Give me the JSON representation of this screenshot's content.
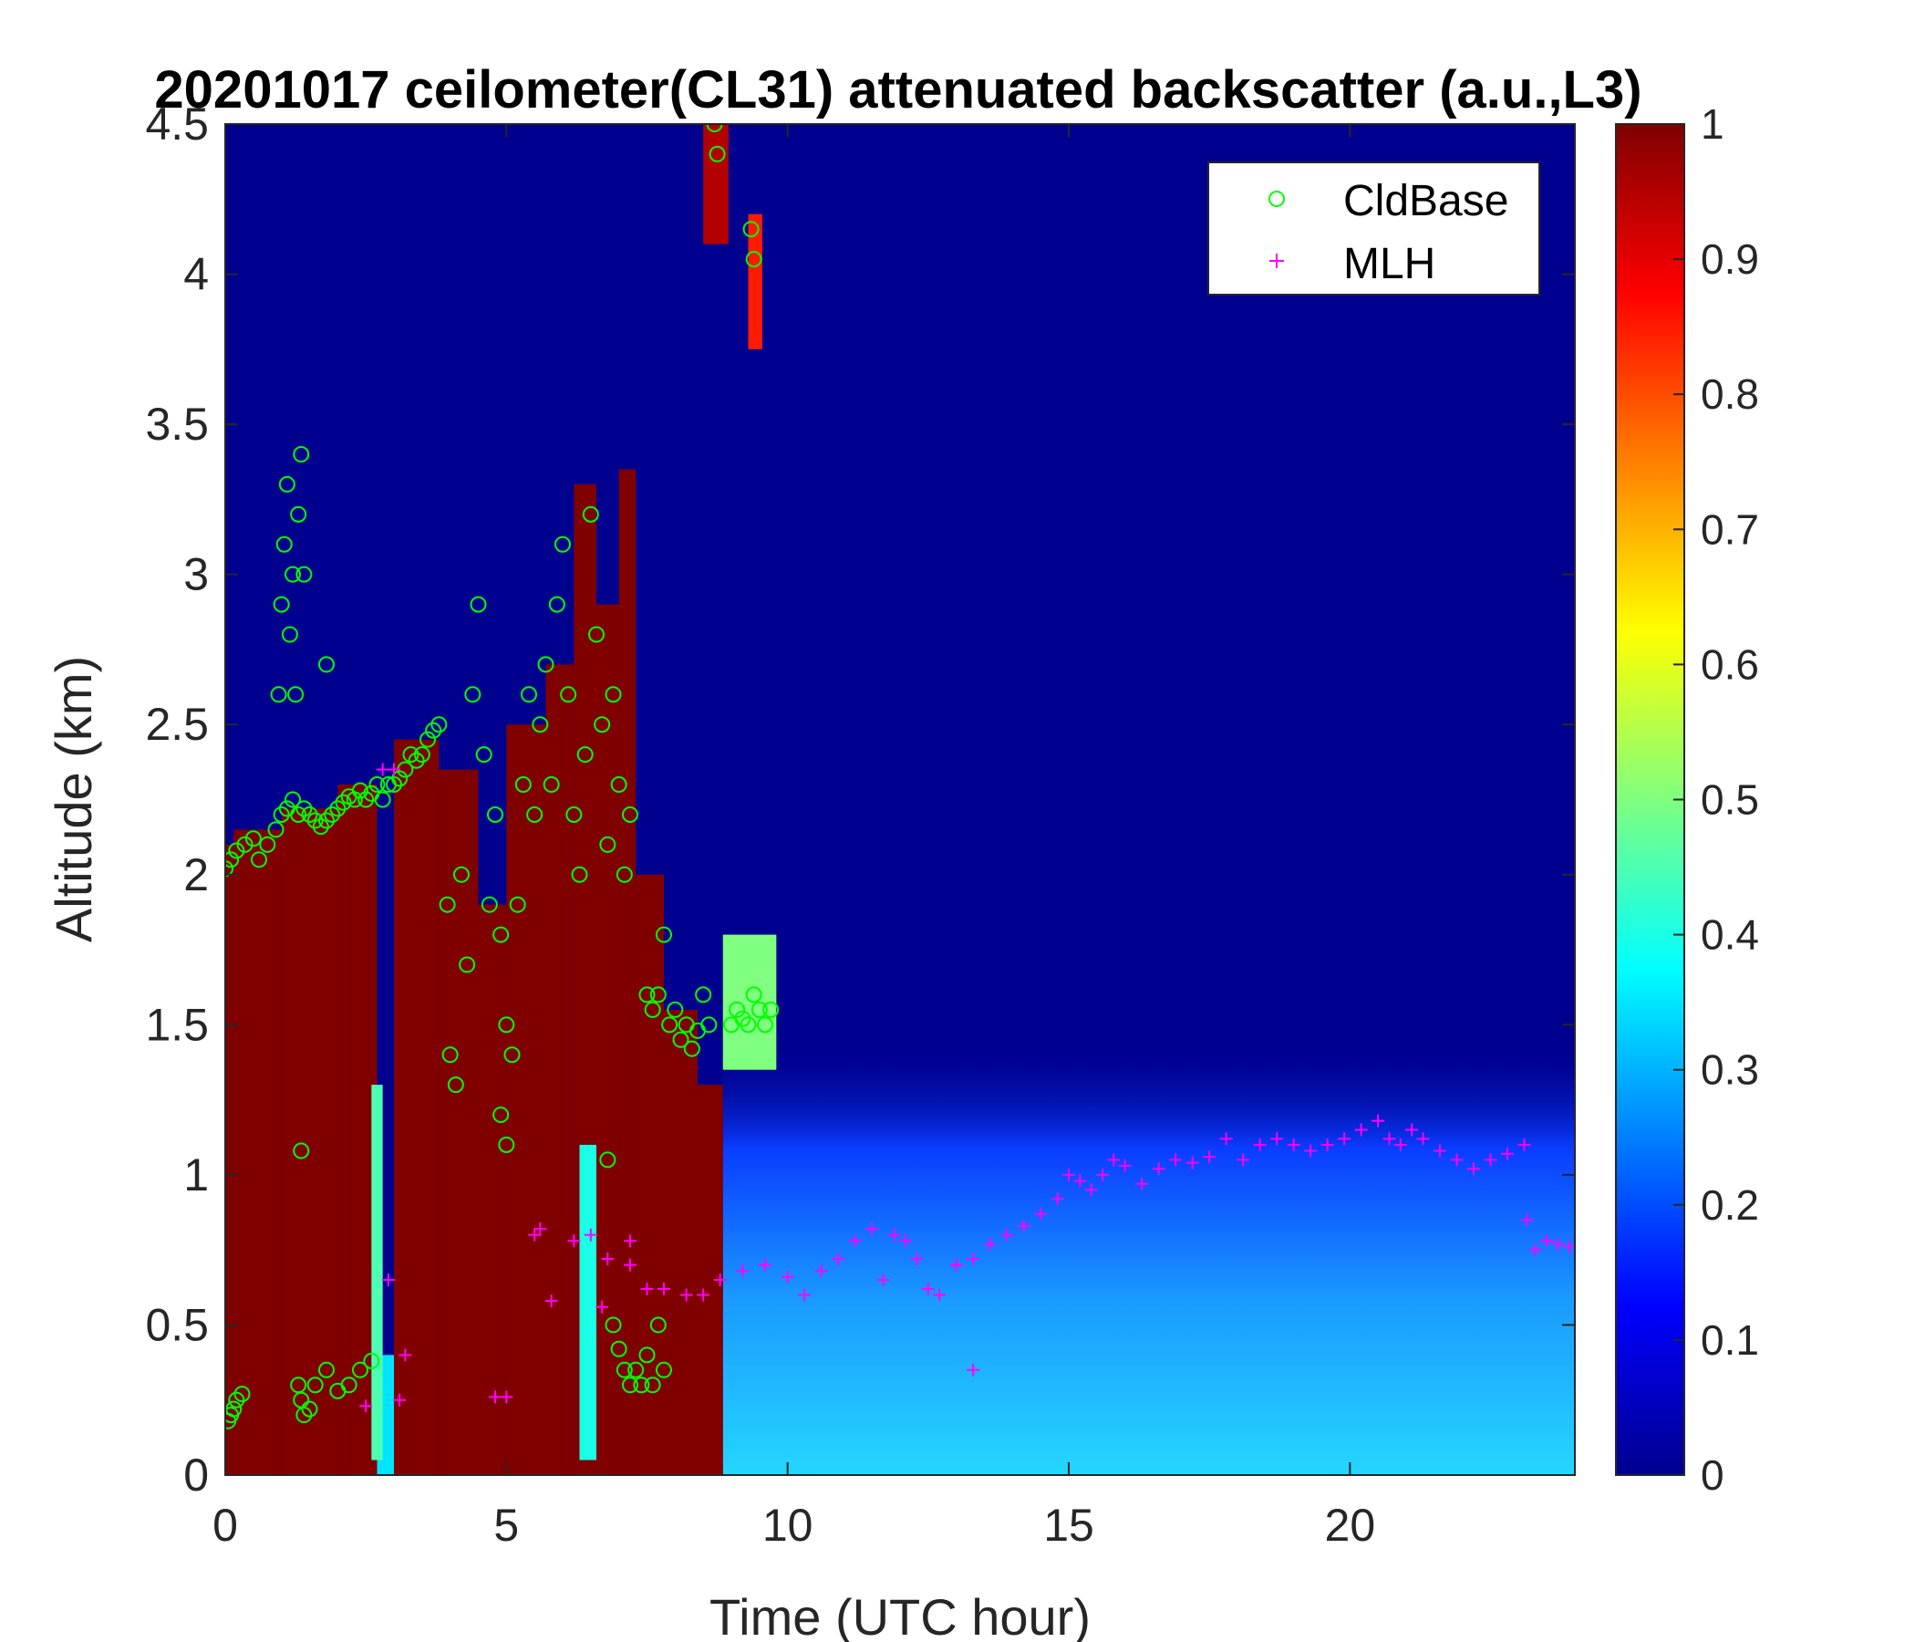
{
  "chart_data": {
    "type": "heatmap",
    "title": "20201017 ceilometer(CL31) attenuated backscatter (a.u.,L3)",
    "xlabel": "Time (UTC hour)",
    "ylabel": "Altitude (km)",
    "xlim": [
      0,
      24
    ],
    "ylim": [
      0,
      4.5
    ],
    "x_ticks": [
      "0",
      "5",
      "10",
      "15",
      "20"
    ],
    "x_tick_values": [
      0,
      5,
      10,
      15,
      20
    ],
    "y_ticks": [
      "0",
      "0.5",
      "1",
      "1.5",
      "2",
      "2.5",
      "3",
      "3.5",
      "4",
      "4.5"
    ],
    "y_tick_values": [
      0,
      0.5,
      1,
      1.5,
      2,
      2.5,
      3,
      3.5,
      4,
      4.5
    ],
    "colorbar": {
      "range": [
        0,
        1
      ],
      "ticks": [
        "0",
        "0.1",
        "0.2",
        "0.3",
        "0.4",
        "0.5",
        "0.6",
        "0.7",
        "0.8",
        "0.9",
        "1"
      ],
      "tick_values": [
        0,
        0.1,
        0.2,
        0.3,
        0.4,
        0.5,
        0.6,
        0.7,
        0.8,
        0.9,
        1.0
      ],
      "colormap": "jet"
    },
    "legend": {
      "placement": "top-right",
      "entries": [
        {
          "name": "CldBase",
          "marker": "o",
          "color": "#00ff00"
        },
        {
          "name": "MLH",
          "marker": "+",
          "color": "#ff00ff"
        }
      ]
    },
    "heatmap_regions": [
      {
        "t0": 0.0,
        "t1": 0.15,
        "z0": 0,
        "z1": 2.1,
        "v": 1.0
      },
      {
        "t0": 0.15,
        "t1": 1.0,
        "z0": 0,
        "z1": 2.15,
        "v": 1.0
      },
      {
        "t0": 1.0,
        "t1": 2.0,
        "z0": 0,
        "z1": 2.22,
        "v": 1.0
      },
      {
        "t0": 2.0,
        "t1": 2.7,
        "z0": 0,
        "z1": 2.3,
        "v": 1.0
      },
      {
        "t0": 2.7,
        "t1": 3.0,
        "z0": 0,
        "z1": 0.4,
        "v": 0.35
      },
      {
        "t0": 3.0,
        "t1": 3.8,
        "z0": 0,
        "z1": 2.45,
        "v": 1.0
      },
      {
        "t0": 3.8,
        "t1": 4.5,
        "z0": 0,
        "z1": 2.35,
        "v": 1.0
      },
      {
        "t0": 4.5,
        "t1": 5.0,
        "z0": 0,
        "z1": 1.9,
        "v": 1.0
      },
      {
        "t0": 5.0,
        "t1": 5.7,
        "z0": 0,
        "z1": 2.5,
        "v": 1.0
      },
      {
        "t0": 5.7,
        "t1": 6.2,
        "z0": 0,
        "z1": 2.7,
        "v": 1.0
      },
      {
        "t0": 6.2,
        "t1": 6.6,
        "z0": 0,
        "z1": 3.3,
        "v": 1.0
      },
      {
        "t0": 6.6,
        "t1": 7.0,
        "z0": 0,
        "z1": 2.9,
        "v": 1.0
      },
      {
        "t0": 7.0,
        "t1": 7.3,
        "z0": 0,
        "z1": 3.35,
        "v": 1.0
      },
      {
        "t0": 7.3,
        "t1": 7.8,
        "z0": 0,
        "z1": 2.0,
        "v": 1.0
      },
      {
        "t0": 7.8,
        "t1": 8.4,
        "z0": 0,
        "z1": 1.55,
        "v": 1.0
      },
      {
        "t0": 8.4,
        "t1": 8.85,
        "z0": 0,
        "z1": 1.3,
        "v": 1.0
      },
      {
        "t0": 8.85,
        "t1": 9.8,
        "z0": 1.35,
        "z1": 1.8,
        "v": 0.5
      },
      {
        "t0": 8.5,
        "t1": 8.95,
        "z0": 4.1,
        "z1": 4.5,
        "v": 0.95
      },
      {
        "t0": 9.3,
        "t1": 9.55,
        "z0": 3.75,
        "z1": 4.2,
        "v": 0.85
      },
      {
        "t0": 2.6,
        "t1": 2.8,
        "z0": 0.05,
        "z1": 1.3,
        "v": 0.45
      },
      {
        "t0": 6.3,
        "t1": 6.6,
        "z0": 0.05,
        "z1": 1.1,
        "v": 0.4
      }
    ],
    "series": [
      {
        "name": "CldBase",
        "x": [
          0.0,
          0.1,
          0.2,
          0.35,
          0.5,
          0.6,
          0.75,
          0.9,
          1.0,
          1.1,
          1.2,
          1.3,
          1.4,
          1.5,
          1.6,
          1.7,
          1.8,
          1.9,
          2.0,
          2.1,
          2.2,
          2.3,
          2.4,
          2.5,
          2.6,
          2.7,
          2.8,
          2.9,
          3.0,
          3.1,
          3.2,
          3.3,
          3.4,
          3.5,
          3.6,
          3.7,
          3.8,
          0.95,
          1.0,
          1.05,
          1.1,
          1.15,
          1.2,
          1.25,
          1.3,
          1.35,
          1.4,
          1.8,
          3.95,
          4.0,
          4.1,
          4.2,
          4.3,
          4.4,
          4.5,
          4.6,
          4.7,
          4.8,
          4.9,
          5.0,
          5.1,
          5.2,
          5.3,
          5.4,
          5.5,
          5.6,
          5.7,
          5.8,
          5.9,
          6.0,
          6.1,
          6.2,
          6.3,
          6.4,
          6.5,
          6.6,
          6.7,
          6.8,
          6.9,
          7.0,
          7.1,
          7.2,
          7.5,
          7.6,
          7.7,
          7.8,
          7.9,
          8.0,
          8.1,
          8.2,
          8.3,
          8.4,
          8.5,
          8.6,
          9.0,
          9.1,
          9.2,
          9.3,
          9.4,
          9.5,
          9.6,
          9.7,
          8.7,
          8.75,
          9.35,
          9.4,
          1.3,
          1.35,
          1.4,
          1.5,
          1.6,
          1.8,
          2.0,
          2.2,
          2.4,
          2.6,
          0.05,
          0.1,
          0.15,
          0.2,
          0.3,
          6.9,
          7.0,
          7.1,
          7.2,
          7.3,
          7.4,
          7.5,
          7.6,
          7.7,
          7.8,
          1.35,
          4.9,
          5.0,
          6.8
        ],
        "y": [
          2.02,
          2.05,
          2.08,
          2.1,
          2.12,
          2.05,
          2.1,
          2.15,
          2.2,
          2.22,
          2.25,
          2.2,
          2.22,
          2.2,
          2.18,
          2.16,
          2.18,
          2.2,
          2.22,
          2.24,
          2.26,
          2.25,
          2.28,
          2.25,
          2.27,
          2.3,
          2.25,
          2.3,
          2.3,
          2.32,
          2.35,
          2.4,
          2.38,
          2.4,
          2.45,
          2.48,
          2.5,
          2.6,
          2.9,
          3.1,
          3.3,
          2.8,
          3.0,
          2.6,
          3.2,
          3.4,
          3.0,
          2.7,
          1.9,
          1.4,
          1.3,
          2.0,
          1.7,
          2.6,
          2.9,
          2.4,
          1.9,
          2.2,
          1.8,
          1.5,
          1.4,
          1.9,
          2.3,
          2.6,
          2.2,
          2.5,
          2.7,
          2.3,
          2.9,
          3.1,
          2.6,
          2.2,
          2.0,
          2.4,
          3.2,
          2.8,
          2.5,
          2.1,
          2.6,
          2.3,
          2.0,
          2.2,
          1.6,
          1.55,
          1.6,
          1.8,
          1.5,
          1.55,
          1.45,
          1.5,
          1.42,
          1.48,
          1.6,
          1.5,
          1.5,
          1.55,
          1.52,
          1.5,
          1.6,
          1.55,
          1.5,
          1.55,
          4.5,
          4.4,
          4.15,
          4.05,
          0.3,
          0.25,
          0.2,
          0.22,
          0.3,
          0.35,
          0.28,
          0.3,
          0.35,
          0.38,
          0.18,
          0.2,
          0.22,
          0.25,
          0.27,
          0.5,
          0.42,
          0.35,
          0.3,
          0.35,
          0.3,
          0.4,
          0.3,
          0.5,
          0.35,
          1.08,
          1.2,
          1.1,
          1.05
        ]
      },
      {
        "name": "MLH",
        "x": [
          2.5,
          2.8,
          3.0,
          3.2,
          5.0,
          5.5,
          5.8,
          6.2,
          6.5,
          6.8,
          7.2,
          7.5,
          7.8,
          8.2,
          8.5,
          8.8,
          9.2,
          9.6,
          10.0,
          10.3,
          10.6,
          10.9,
          11.2,
          11.5,
          11.7,
          11.9,
          12.1,
          12.3,
          12.5,
          12.7,
          13.0,
          13.3,
          13.6,
          13.9,
          14.2,
          14.5,
          14.8,
          15.0,
          15.2,
          15.4,
          15.6,
          15.8,
          16.0,
          16.3,
          16.6,
          16.9,
          17.2,
          17.5,
          17.8,
          18.1,
          18.4,
          18.7,
          19.0,
          19.3,
          19.6,
          19.9,
          20.2,
          20.5,
          20.7,
          20.9,
          21.1,
          21.3,
          21.6,
          21.9,
          22.2,
          22.5,
          22.8,
          23.1,
          23.3,
          23.5,
          23.7,
          23.9,
          2.9,
          3.1,
          4.8,
          5.6,
          6.7,
          7.2,
          13.3,
          23.15
        ],
        "y": [
          0.23,
          2.35,
          2.35,
          0.4,
          0.26,
          0.8,
          0.58,
          0.78,
          0.8,
          0.72,
          0.7,
          0.62,
          0.62,
          0.6,
          0.6,
          0.65,
          0.68,
          0.7,
          0.66,
          0.6,
          0.68,
          0.72,
          0.78,
          0.82,
          0.65,
          0.8,
          0.78,
          0.72,
          0.62,
          0.6,
          0.7,
          0.72,
          0.77,
          0.8,
          0.83,
          0.87,
          0.92,
          1.0,
          0.98,
          0.95,
          1.0,
          1.05,
          1.03,
          0.97,
          1.02,
          1.05,
          1.04,
          1.06,
          1.12,
          1.05,
          1.1,
          1.12,
          1.1,
          1.08,
          1.1,
          1.12,
          1.15,
          1.18,
          1.12,
          1.1,
          1.15,
          1.12,
          1.08,
          1.05,
          1.02,
          1.05,
          1.07,
          1.1,
          0.75,
          0.78,
          0.77,
          0.76,
          0.65,
          0.25,
          0.26,
          0.82,
          0.56,
          0.78,
          0.35,
          0.85
        ]
      }
    ]
  }
}
